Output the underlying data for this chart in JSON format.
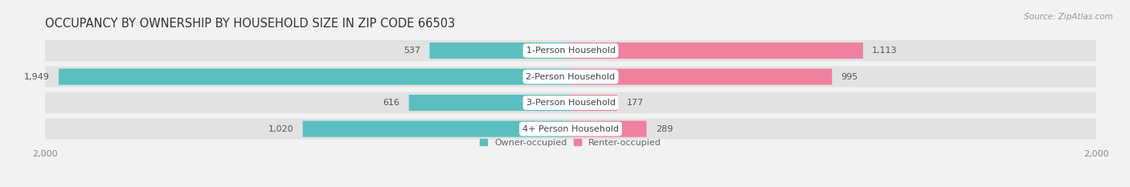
{
  "title": "OCCUPANCY BY OWNERSHIP BY HOUSEHOLD SIZE IN ZIP CODE 66503",
  "source": "Source: ZipAtlas.com",
  "categories": [
    "1-Person Household",
    "2-Person Household",
    "3-Person Household",
    "4+ Person Household"
  ],
  "owner_values": [
    537,
    1949,
    616,
    1020
  ],
  "renter_values": [
    1113,
    995,
    177,
    289
  ],
  "owner_color": "#5BBFBF",
  "renter_color": "#F080A0",
  "background_color": "#F2F2F2",
  "bar_bg_color": "#E2E2E2",
  "label_bg_color": "#FFFFFF",
  "axis_max": 2000,
  "bar_height": 0.62,
  "title_fontsize": 10.5,
  "source_fontsize": 7.5,
  "tick_fontsize": 8,
  "cat_fontsize": 8,
  "value_fontsize": 8
}
